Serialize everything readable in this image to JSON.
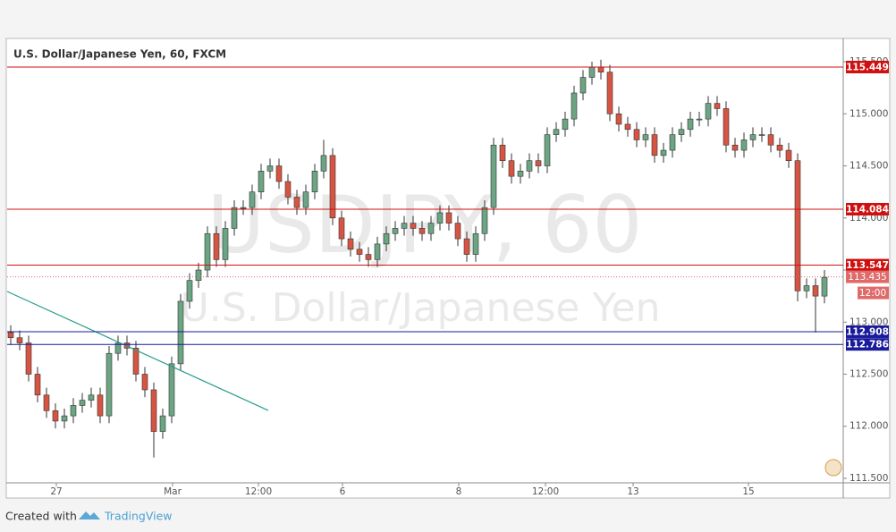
{
  "header": {
    "title": "U.S. Dollar/Japanese Yen, 60, FXCM"
  },
  "chart_data": {
    "type": "candlestick",
    "watermark": [
      "USDJPY, 60",
      "U.S. Dollar/Japanese Yen"
    ],
    "up_color": "#6ba583",
    "down_color": "#d75442",
    "open": [
      112.9,
      112.85,
      112.8,
      112.5,
      112.3,
      112.15,
      112.05,
      112.1,
      112.2,
      112.25,
      112.3,
      112.1,
      112.7,
      112.8,
      112.75,
      112.5,
      112.35,
      111.95,
      112.1,
      112.6,
      113.2,
      113.4,
      113.5,
      113.85,
      113.6,
      113.9,
      114.1,
      114.1,
      114.25,
      114.45,
      114.5,
      114.35,
      114.2,
      114.1,
      114.25,
      114.45,
      114.6,
      114.0,
      113.8,
      113.7,
      113.65,
      113.6,
      113.75,
      113.85,
      113.9,
      113.95,
      113.9,
      113.85,
      113.95,
      114.05,
      113.95,
      113.8,
      113.65,
      113.85,
      114.1,
      114.7,
      114.55,
      114.4,
      114.45,
      114.55,
      114.5,
      114.8,
      114.85,
      114.95,
      115.2,
      115.35,
      115.45,
      115.4,
      115.0,
      114.9,
      114.85,
      114.75,
      114.8,
      114.6,
      114.65,
      114.8,
      114.85,
      114.95,
      114.95,
      115.1,
      115.05,
      114.7,
      114.65,
      114.75,
      114.8,
      114.8,
      114.7,
      114.65,
      114.55,
      113.3,
      113.35,
      113.25
    ],
    "high": [
      112.97,
      112.92,
      112.87,
      112.57,
      112.37,
      112.22,
      112.17,
      112.27,
      112.32,
      112.37,
      112.37,
      112.77,
      112.87,
      112.87,
      112.82,
      112.57,
      112.42,
      112.17,
      112.67,
      113.27,
      113.47,
      113.57,
      113.92,
      113.92,
      113.97,
      114.17,
      114.17,
      114.32,
      114.52,
      114.57,
      114.57,
      114.42,
      114.27,
      114.32,
      114.52,
      114.75,
      114.67,
      114.07,
      113.87,
      113.77,
      113.72,
      113.82,
      113.92,
      113.97,
      114.02,
      114.02,
      113.97,
      114.02,
      114.12,
      114.12,
      114.02,
      113.87,
      113.92,
      114.17,
      114.77,
      114.77,
      114.62,
      114.52,
      114.62,
      114.62,
      114.87,
      114.92,
      115.02,
      115.27,
      115.42,
      115.5,
      115.52,
      115.47,
      115.07,
      114.97,
      114.92,
      114.87,
      114.87,
      114.72,
      114.87,
      114.92,
      115.02,
      115.02,
      115.17,
      115.17,
      115.12,
      114.77,
      114.82,
      114.87,
      114.87,
      114.87,
      114.77,
      114.72,
      114.62,
      113.42,
      113.42,
      113.5
    ],
    "low": [
      112.78,
      112.73,
      112.43,
      112.23,
      112.08,
      111.98,
      111.98,
      112.03,
      112.13,
      112.18,
      112.03,
      112.03,
      112.63,
      112.68,
      112.43,
      112.28,
      111.7,
      111.88,
      112.03,
      112.53,
      113.13,
      113.33,
      113.43,
      113.53,
      113.53,
      113.83,
      114.03,
      114.03,
      114.18,
      114.38,
      114.28,
      114.13,
      114.03,
      114.03,
      114.18,
      114.38,
      113.93,
      113.73,
      113.63,
      113.58,
      113.53,
      113.53,
      113.68,
      113.78,
      113.83,
      113.83,
      113.78,
      113.78,
      113.88,
      113.88,
      113.73,
      113.58,
      113.58,
      113.78,
      114.03,
      114.48,
      114.33,
      114.33,
      114.38,
      114.43,
      114.43,
      114.73,
      114.78,
      114.88,
      115.13,
      115.28,
      115.33,
      114.93,
      114.83,
      114.78,
      114.68,
      114.68,
      114.53,
      114.53,
      114.58,
      114.73,
      114.78,
      114.88,
      114.88,
      114.98,
      114.63,
      114.58,
      114.58,
      114.68,
      114.73,
      114.63,
      114.58,
      114.48,
      113.2,
      113.23,
      112.9,
      113.18
    ],
    "close": [
      112.85,
      112.8,
      112.5,
      112.3,
      112.15,
      112.05,
      112.1,
      112.2,
      112.25,
      112.3,
      112.1,
      112.7,
      112.8,
      112.75,
      112.5,
      112.35,
      111.95,
      112.1,
      112.6,
      113.2,
      113.4,
      113.5,
      113.85,
      113.6,
      113.9,
      114.1,
      114.1,
      114.25,
      114.45,
      114.5,
      114.35,
      114.2,
      114.1,
      114.25,
      114.45,
      114.6,
      114.0,
      113.8,
      113.7,
      113.65,
      113.6,
      113.75,
      113.85,
      113.9,
      113.95,
      113.9,
      113.85,
      113.95,
      114.05,
      113.95,
      113.8,
      113.65,
      113.85,
      114.1,
      114.7,
      114.55,
      114.4,
      114.45,
      114.55,
      114.5,
      114.8,
      114.85,
      114.95,
      115.2,
      115.35,
      115.45,
      115.4,
      115.0,
      114.9,
      114.85,
      114.75,
      114.8,
      114.6,
      114.65,
      114.8,
      114.85,
      114.95,
      114.95,
      115.1,
      115.05,
      114.7,
      114.65,
      114.75,
      114.8,
      114.8,
      114.7,
      114.65,
      114.55,
      113.3,
      113.35,
      113.25,
      113.43
    ],
    "xlim": [
      -0.4,
      93.1
    ],
    "xticks": [
      {
        "value": 5.1,
        "label": "27"
      },
      {
        "value": 18.1,
        "label": "Mar"
      },
      {
        "value": 27.7,
        "label": "12:00"
      },
      {
        "value": 37.1,
        "label": "6"
      },
      {
        "value": 50.1,
        "label": "8"
      },
      {
        "value": 59.8,
        "label": "12:00"
      },
      {
        "value": 69.6,
        "label": "13"
      },
      {
        "value": 82.5,
        "label": "15"
      }
    ],
    "ylim": [
      111.457,
      115.715
    ],
    "yticks": [
      {
        "value": 111.5,
        "label": "111.500"
      },
      {
        "value": 112.0,
        "label": "112.000"
      },
      {
        "value": 112.5,
        "label": "112.500"
      },
      {
        "value": 113.0,
        "label": "113.000"
      },
      {
        "value": 113.5,
        "label": "113.500"
      },
      {
        "value": 114.0,
        "label": "114.000"
      },
      {
        "value": 114.5,
        "label": "114.500"
      },
      {
        "value": 115.0,
        "label": "115.000"
      },
      {
        "value": 115.5,
        "label": "115.500"
      }
    ],
    "grid": false,
    "levels": [
      {
        "value": 115.449,
        "label": "115.449",
        "color": "#d01010"
      },
      {
        "value": 114.084,
        "label": "114.084",
        "color": "#d01010"
      },
      {
        "value": 113.547,
        "label": "113.547",
        "color": "#d01010"
      },
      {
        "value": 112.908,
        "label": "112.908",
        "color": "#1a1a9c"
      },
      {
        "value": 112.786,
        "label": "112.786",
        "color": "#1a1a9c"
      }
    ],
    "current_price": {
      "value": 113.435,
      "label": "113.435",
      "color": "#e06a6a"
    },
    "countdown": "12:00",
    "trendline": {
      "x": [
        -0.4,
        28.8
      ],
      "y": [
        113.294,
        112.152
      ],
      "color": "#2a9d8f"
    }
  },
  "footer": {
    "prefix": "Created with",
    "brand": "TradingView"
  }
}
